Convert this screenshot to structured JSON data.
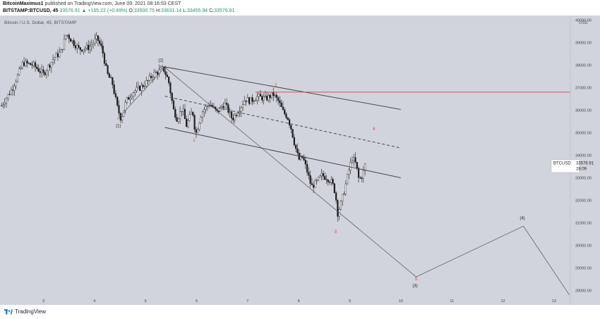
{
  "header": {
    "author": "BitcoinMaximus1",
    "published_text": "published on TradingView.com, June 09, 2021 08:16:53 CEST",
    "symbol": "BITSTAMP:BTCUSD, 45",
    "last_price": "33576.91",
    "change": "▲ +165.22 (+0.49%)",
    "open_label": "O:",
    "open": "33500.75",
    "high_label": "H:",
    "high": "33631.14",
    "low_label": "L:",
    "low": "33455.94",
    "close_label": "C:",
    "close": "33576.91"
  },
  "chart": {
    "pane_title": "Bitcoin / U.S. Dollar, 45, BITSTAMP",
    "currency": "USD",
    "price_label": {
      "ticker": "BTCUSD",
      "price": "33576.91",
      "countdown": "28:09"
    },
    "colors": {
      "background": "#d1d4dc",
      "candle": "#1e1e1e",
      "trendline": "#3a3a3a",
      "resistance": "#e03b3b",
      "wave_red": "#e03b3b",
      "wave_black": "#222222"
    }
  },
  "chart_data": {
    "type": "candlestick",
    "title": "Bitcoin / U.S. Dollar, 45, BITSTAMP",
    "y_ticks": [
      28000,
      29000,
      30000,
      31000,
      32000,
      33000,
      34000,
      35000,
      36000,
      37000,
      38000,
      39000,
      40000
    ],
    "ylim": [
      27700,
      40200
    ],
    "x_ticks": [
      "3",
      "4",
      "5",
      "6",
      "7",
      "8",
      "9",
      "10",
      "11",
      "12",
      "13"
    ],
    "x_tick_days": [
      3,
      4,
      5,
      6,
      7,
      8,
      9,
      10,
      11,
      12,
      13
    ],
    "xlim": [
      2.15,
      13.32
    ],
    "price_path": [
      [
        2.18,
        36200
      ],
      [
        2.4,
        37000
      ],
      [
        2.6,
        38100
      ],
      [
        2.8,
        38000
      ],
      [
        3.0,
        37600
      ],
      [
        3.2,
        38300
      ],
      [
        3.35,
        38600
      ],
      [
        3.45,
        39400
      ],
      [
        3.55,
        39100
      ],
      [
        3.7,
        38700
      ],
      [
        3.9,
        38800
      ],
      [
        4.05,
        39200
      ],
      [
        4.15,
        38700
      ],
      [
        4.25,
        37600
      ],
      [
        4.35,
        37200
      ],
      [
        4.45,
        36100
      ],
      [
        4.52,
        35600
      ],
      [
        4.62,
        36400
      ],
      [
        4.75,
        36800
      ],
      [
        4.9,
        37000
      ],
      [
        5.05,
        37300
      ],
      [
        5.15,
        37600
      ],
      [
        5.25,
        37700
      ],
      [
        5.35,
        37850
      ],
      [
        5.45,
        37300
      ],
      [
        5.55,
        36000
      ],
      [
        5.62,
        35600
      ],
      [
        5.72,
        36100
      ],
      [
        5.8,
        35300
      ],
      [
        5.92,
        36000
      ],
      [
        5.98,
        34900
      ],
      [
        6.1,
        35900
      ],
      [
        6.25,
        36300
      ],
      [
        6.4,
        35900
      ],
      [
        6.55,
        36300
      ],
      [
        6.7,
        35600
      ],
      [
        6.85,
        36100
      ],
      [
        6.95,
        36500
      ],
      [
        7.05,
        36400
      ],
      [
        7.2,
        36600
      ],
      [
        7.35,
        36500
      ],
      [
        7.5,
        36700
      ],
      [
        7.6,
        36400
      ],
      [
        7.7,
        35900
      ],
      [
        7.78,
        35700
      ],
      [
        7.85,
        35200
      ],
      [
        7.92,
        34500
      ],
      [
        8.0,
        33800
      ],
      [
        8.08,
        33900
      ],
      [
        8.15,
        33400
      ],
      [
        8.25,
        32600
      ],
      [
        8.35,
        32800
      ],
      [
        8.45,
        33100
      ],
      [
        8.55,
        33000
      ],
      [
        8.65,
        32800
      ],
      [
        8.72,
        32300
      ],
      [
        8.76,
        31400
      ],
      [
        8.82,
        31800
      ],
      [
        8.9,
        32500
      ],
      [
        8.98,
        33300
      ],
      [
        9.05,
        33900
      ],
      [
        9.12,
        33600
      ],
      [
        9.18,
        32900
      ],
      [
        9.25,
        33100
      ],
      [
        9.3,
        33577
      ]
    ],
    "candle_spread": 280,
    "wick_spread": 420,
    "drawings": {
      "upper_channel": [
        [
          5.38,
          37920
        ],
        [
          10.0,
          36030
        ]
      ],
      "lower_channel": [
        [
          5.38,
          35230
        ],
        [
          10.0,
          33000
        ]
      ],
      "mid_channel": [
        [
          5.38,
          36620
        ],
        [
          10.0,
          34320
        ]
      ],
      "resistance_line": [
        [
          7.15,
          36800
        ],
        [
          13.32,
          36800
        ]
      ],
      "projection": [
        [
          4.45,
          35600
        ],
        [
          5.38,
          37900
        ],
        [
          10.3,
          28600
        ],
        [
          12.4,
          30850
        ],
        [
          13.3,
          27800
        ]
      ]
    },
    "wave_labels": [
      {
        "text": "(1)",
        "x": 4.47,
        "y": 35250,
        "color": "black"
      },
      {
        "text": "(2)",
        "x": 5.3,
        "y": 38150,
        "color": "black"
      },
      {
        "text": "1",
        "x": 5.95,
        "y": 34600,
        "color": "red"
      },
      {
        "text": "2",
        "x": 7.55,
        "y": 37050,
        "color": "red"
      },
      {
        "text": "3",
        "x": 8.72,
        "y": 30550,
        "color": "red"
      },
      {
        "text": "4",
        "x": 9.47,
        "y": 35100,
        "color": "red"
      },
      {
        "text": "5",
        "x": 10.3,
        "y": 28450,
        "color": "red"
      },
      {
        "text": "(3)",
        "x": 10.28,
        "y": 28150,
        "color": "black"
      },
      {
        "text": "(4)",
        "x": 12.38,
        "y": 31150,
        "color": "black"
      }
    ]
  },
  "footer": {
    "brand": "TradingView"
  }
}
